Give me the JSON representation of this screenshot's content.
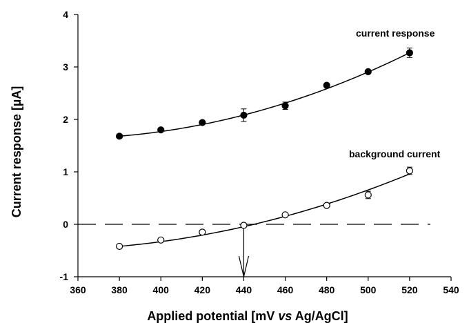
{
  "chart_data": {
    "type": "scatter",
    "title": "",
    "xlabel_parts": [
      "Applied potential [mV ",
      "vs",
      " Ag/AgCl]"
    ],
    "ylabel": "Current  response [µA]",
    "xlim": [
      360,
      540
    ],
    "ylim": [
      -1,
      4
    ],
    "x_ticks": [
      360,
      380,
      400,
      420,
      440,
      460,
      480,
      500,
      520,
      540
    ],
    "y_ticks": [
      -1,
      0,
      1,
      2,
      3,
      4
    ],
    "grid": false,
    "series": [
      {
        "name": "current response",
        "marker": "filled-circle",
        "x": [
          380,
          400,
          420,
          440,
          460,
          480,
          500,
          520
        ],
        "y": [
          1.68,
          1.8,
          1.94,
          2.08,
          2.26,
          2.65,
          2.91,
          3.27
        ],
        "err": [
          0.03,
          0.03,
          0.05,
          0.12,
          0.07,
          0.04,
          0.03,
          0.09
        ],
        "fit": [
          1.68,
          3.27
        ]
      },
      {
        "name": "background current",
        "marker": "open-circle",
        "x": [
          380,
          400,
          420,
          440,
          460,
          480,
          500,
          520
        ],
        "y": [
          -0.42,
          -0.3,
          -0.15,
          -0.02,
          0.18,
          0.36,
          0.56,
          1.02
        ],
        "err": [
          0.02,
          0.02,
          0.02,
          0.03,
          0.03,
          0.03,
          0.07,
          0.07
        ],
        "fit": [
          -0.42,
          0.96
        ]
      }
    ],
    "reference_line": {
      "y": 0,
      "x_range": [
        360,
        530
      ],
      "style": "dashed"
    },
    "arrow": {
      "x": 440,
      "from_y": -0.02,
      "to_y": -1
    }
  }
}
